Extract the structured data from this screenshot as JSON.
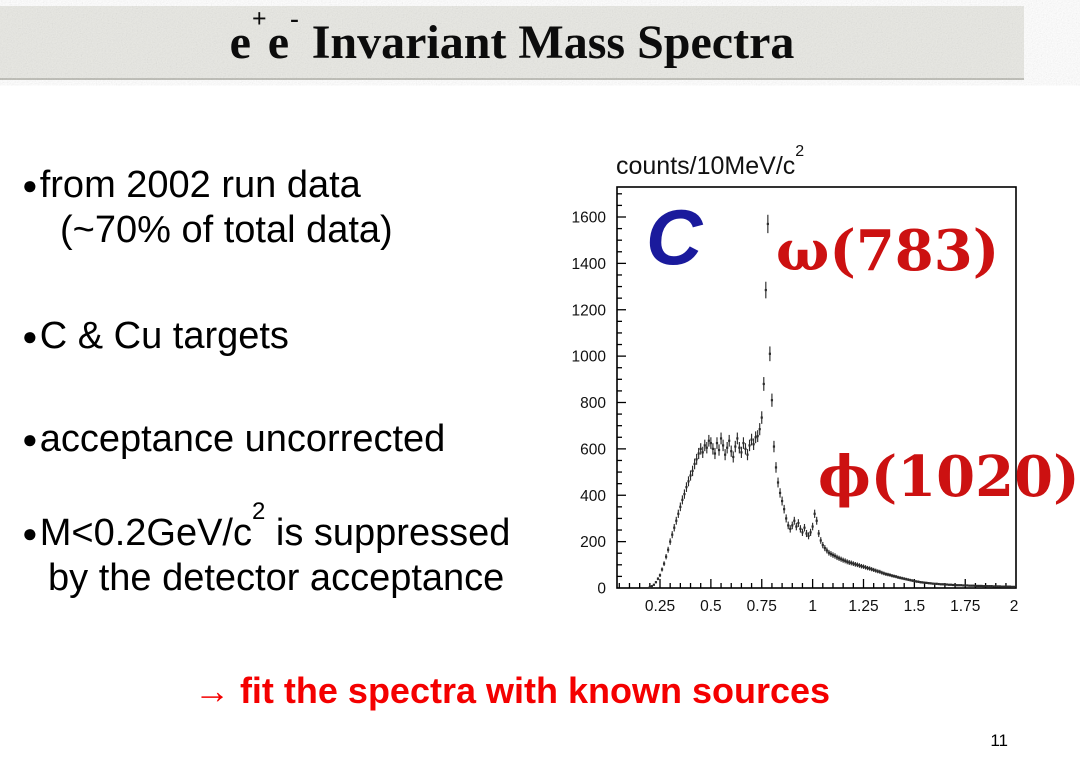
{
  "header": {
    "band_color": "#e8e8e3",
    "title_parts": {
      "e1": "e",
      "sup1": "+",
      "e2": "e",
      "sup2": "-",
      "rest": " Invariant Mass Spectra"
    }
  },
  "bullets": {
    "marker": "●",
    "b1_line1": "from 2002 run data",
    "b1_line2": "(~70% of total data)",
    "b2": "C & Cu targets",
    "b3": "acceptance uncorrected",
    "b4_line1_main": "M<0.2GeV/c",
    "b4_line1_sup": "2",
    "b4_line1_rest": " is suppressed",
    "b4_line2": "by the detector acceptance"
  },
  "chart_data": {
    "type": "histogram",
    "title": "",
    "ylabel": "counts/10MeV/c²",
    "ylabel_main": "counts/10MeV/c",
    "ylabel_sup": "2",
    "xlabel": "",
    "xlim": [
      0.04,
      2.0
    ],
    "ylim": [
      0,
      1730
    ],
    "xticks": [
      0.25,
      0.5,
      0.75,
      1,
      1.25,
      1.5,
      1.75,
      2
    ],
    "yticks": [
      0,
      200,
      400,
      600,
      800,
      1000,
      1200,
      1400,
      1600
    ],
    "x_minor_step": 0.05,
    "y_minor_step": 50,
    "x_start": 0.2,
    "dx": 0.01,
    "error_model": "sqrt",
    "marker_color": "#2b2b2b",
    "frame_color": "#000000",
    "counts": [
      4,
      8,
      14,
      25,
      40,
      55,
      80,
      105,
      135,
      165,
      200,
      230,
      260,
      290,
      320,
      350,
      380,
      405,
      435,
      460,
      485,
      505,
      535,
      555,
      580,
      600,
      585,
      615,
      605,
      635,
      625,
      600,
      580,
      625,
      595,
      645,
      615,
      575,
      605,
      635,
      590,
      565,
      610,
      645,
      605,
      585,
      625,
      600,
      575,
      615,
      640,
      620,
      650,
      655,
      685,
      735,
      880,
      1285,
      1570,
      1010,
      810,
      610,
      520,
      455,
      410,
      375,
      340,
      300,
      270,
      255,
      270,
      290,
      265,
      280,
      255,
      240,
      260,
      235,
      225,
      240,
      265,
      320,
      290,
      235,
      205,
      185,
      172,
      162,
      152,
      147,
      142,
      138,
      132,
      128,
      124,
      120,
      117,
      113,
      110,
      108,
      105,
      102,
      100,
      97,
      94,
      92,
      89,
      86,
      84,
      81,
      78,
      75,
      72,
      70,
      66,
      63,
      60,
      58,
      56,
      53,
      51,
      49,
      46,
      44,
      42,
      40,
      38,
      36,
      34,
      32,
      30,
      28,
      27,
      25,
      24,
      23,
      22,
      21,
      20,
      19,
      18,
      18,
      17,
      16,
      16,
      15,
      15,
      14,
      14,
      13,
      13,
      12,
      12,
      12,
      11,
      11,
      11,
      10,
      10,
      10,
      9,
      9,
      9,
      9,
      8,
      8,
      8,
      8,
      8,
      7,
      7,
      7,
      7,
      6,
      6,
      6,
      6,
      6,
      5,
      5,
      5
    ],
    "annotations": [
      {
        "label": "C",
        "color": "#1a1a9c"
      },
      {
        "label": "ω(783)",
        "color": "#cc1111"
      },
      {
        "label": "ϕ(1020)",
        "color": "#cc1111"
      }
    ]
  },
  "footer": {
    "fit_text": "→ fit the spectra with known sources",
    "fit_color": "#f40000",
    "page_number": "11"
  }
}
